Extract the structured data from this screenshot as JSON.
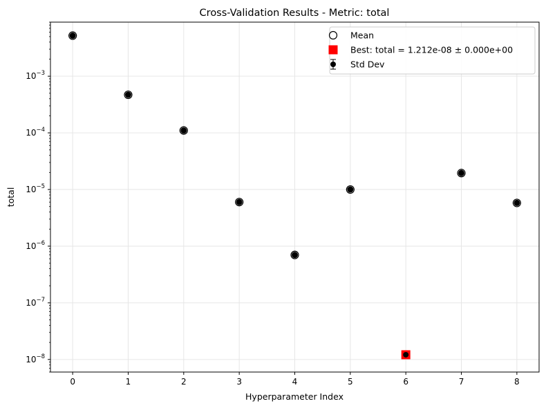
{
  "chart_data": {
    "type": "scatter",
    "title": "Cross-Validation Results - Metric: total",
    "xlabel": "Hyperparameter Index",
    "ylabel": "total",
    "xlim": [
      -0.4,
      8.4
    ],
    "ylim": [
      6e-09,
      0.009
    ],
    "yscale": "log",
    "grid": true,
    "legend_position": "top-right",
    "x_ticks": [
      "0",
      "1",
      "2",
      "3",
      "4",
      "5",
      "6",
      "7",
      "8"
    ],
    "y_ticks": [
      {
        "value": 1e-08,
        "base": "10",
        "exp": "−8"
      },
      {
        "value": 1e-07,
        "base": "10",
        "exp": "−7"
      },
      {
        "value": 1e-06,
        "base": "10",
        "exp": "−6"
      },
      {
        "value": 1e-05,
        "base": "10",
        "exp": "−5"
      },
      {
        "value": 0.0001,
        "base": "10",
        "exp": "−4"
      },
      {
        "value": 0.001,
        "base": "10",
        "exp": "−3"
      }
    ],
    "x": [
      0,
      1,
      2,
      3,
      4,
      5,
      6,
      7,
      8
    ],
    "mean": [
      0.0052,
      0.00047,
      0.00011,
      6e-06,
      7e-07,
      1e-05,
      1.212e-08,
      1.95e-05,
      5.8e-06
    ],
    "std": [
      0,
      0,
      0,
      0,
      0,
      0,
      0,
      0,
      0
    ],
    "best_index": 6,
    "legend": [
      {
        "key": "mean",
        "label": "Mean"
      },
      {
        "key": "best",
        "label": "Best: total = 1.212e-08 ± 0.000e+00"
      },
      {
        "key": "std",
        "label": "Std Dev"
      }
    ],
    "colors": {
      "marker": "#000000",
      "best": "#ff0000",
      "grid": "#e6e6e6"
    }
  }
}
